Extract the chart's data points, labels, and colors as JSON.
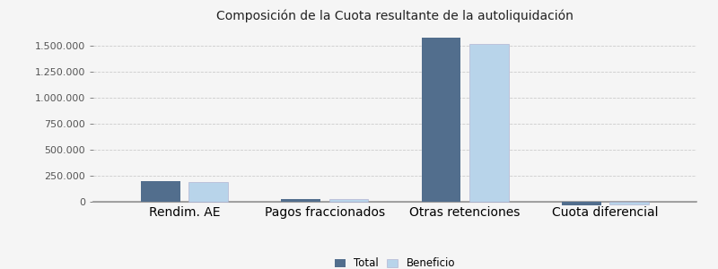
{
  "title": "Composición de la Cuota resultante de la autoliquidación",
  "categories": [
    "Rendim. AE",
    "Pagos fraccionados",
    "Otras retenciones",
    "Cuota diferencial"
  ],
  "total_values": [
    195000,
    25000,
    1580000,
    -35000
  ],
  "beneficio_values": [
    185000,
    22000,
    1520000,
    -28000
  ],
  "bar_color_total": "#526e8d",
  "bar_color_beneficio": "#b8d4ea",
  "bar_width": 0.28,
  "ylim": [
    -80000,
    1680000
  ],
  "yticks": [
    0,
    250000,
    500000,
    750000,
    1000000,
    1250000,
    1500000
  ],
  "legend_labels": [
    "Total",
    "Beneficio"
  ],
  "background_color": "#f5f5f5",
  "plot_background": "#f5f5f5",
  "grid_color": "#cccccc",
  "title_fontsize": 10,
  "tick_fontsize": 8,
  "legend_fontsize": 8.5
}
